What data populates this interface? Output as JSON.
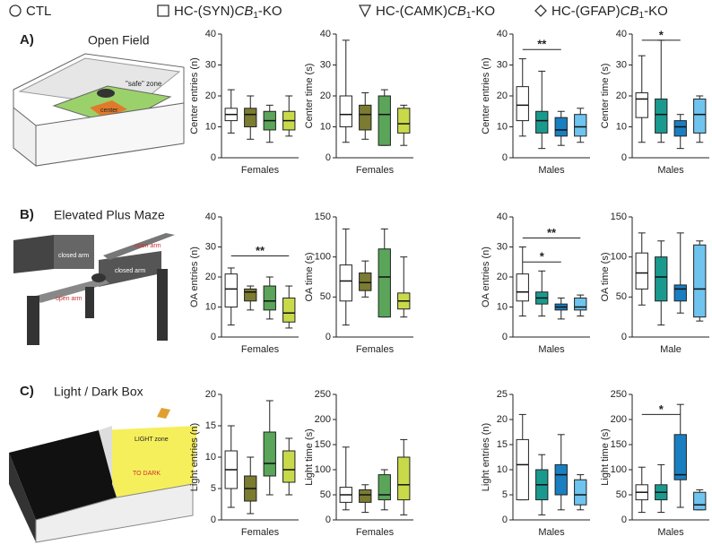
{
  "legend": [
    {
      "label": "CTL"
    },
    {
      "prefix": "HC-(SYN)",
      "gene": "CB",
      "sub": "1",
      "suffix": "-KO"
    },
    {
      "prefix": "HC-(CAMK)",
      "gene": "CB",
      "sub": "1",
      "suffix": "-KO"
    },
    {
      "prefix": "HC-(GFAP)",
      "gene": "CB",
      "sub": "1",
      "suffix": "-KO"
    }
  ],
  "rows": [
    {
      "label": "A)",
      "title": "Open Field",
      "notes": [
        "\"safe\" zone",
        "center"
      ]
    },
    {
      "label": "B)",
      "title": "Elevated Plus Maze",
      "notes": [
        "closed arm",
        "closed arm",
        "open arm",
        "open arm"
      ]
    },
    {
      "label": "C)",
      "title": "Light / Dark Box",
      "notes": [
        "LIGHT zone",
        "TO DARK"
      ]
    }
  ],
  "chart_data": [
    {
      "type": "box",
      "ylabel": "Center entries (n)",
      "xlabel": "Females",
      "ylim": [
        0,
        40
      ],
      "yticks": [
        0,
        10,
        20,
        30,
        40
      ],
      "boxes": [
        {
          "color": "#ffffff",
          "values": [
            8,
            12,
            14,
            16,
            22
          ]
        },
        {
          "color": "#7b7b32",
          "values": [
            6,
            10,
            14,
            16,
            20
          ]
        },
        {
          "color": "#5aa55a",
          "values": [
            5,
            9,
            12,
            15,
            17
          ]
        },
        {
          "color": "#c8da4a",
          "values": [
            7,
            9,
            12,
            15,
            20
          ]
        }
      ]
    },
    {
      "type": "box",
      "ylabel": "Center time (s)",
      "xlabel": "Females",
      "ylim": [
        0,
        40
      ],
      "yticks": [
        0,
        10,
        20,
        30,
        40
      ],
      "boxes": [
        {
          "color": "#ffffff",
          "values": [
            5,
            10,
            14,
            20,
            38
          ]
        },
        {
          "color": "#7b7b32",
          "values": [
            6,
            9,
            14,
            17,
            21
          ]
        },
        {
          "color": "#5aa55a",
          "values": [
            4,
            4,
            14,
            20,
            22
          ]
        },
        {
          "color": "#c8da4a",
          "values": [
            4,
            8,
            11,
            16,
            17
          ]
        }
      ]
    },
    {
      "type": "box",
      "ylabel": "Center entries (n)",
      "xlabel": "Males",
      "ylim": [
        0,
        40
      ],
      "yticks": [
        0,
        10,
        20,
        30,
        40
      ],
      "boxes": [
        {
          "color": "#ffffff",
          "values": [
            7,
            12,
            17,
            23,
            32
          ]
        },
        {
          "color": "#1a9a8f",
          "values": [
            3,
            8,
            12,
            15,
            28
          ]
        },
        {
          "color": "#1a7fc0",
          "values": [
            4,
            7,
            9,
            13,
            15
          ]
        },
        {
          "color": "#6ec4ee",
          "values": [
            5,
            7,
            10,
            14,
            16
          ]
        }
      ],
      "annotations": [
        {
          "label": "**",
          "from": 0,
          "to": 2,
          "y": 35
        }
      ]
    },
    {
      "type": "box",
      "ylabel": "Center time (s)",
      "xlabel": "Males",
      "ylim": [
        0,
        40
      ],
      "yticks": [
        0,
        10,
        20,
        30,
        40
      ],
      "boxes": [
        {
          "color": "#ffffff",
          "values": [
            5,
            13,
            19,
            21,
            33
          ]
        },
        {
          "color": "#1a9a8f",
          "values": [
            5,
            8,
            14,
            19,
            38
          ]
        },
        {
          "color": "#1a7fc0",
          "values": [
            3,
            7,
            10,
            12,
            14
          ]
        },
        {
          "color": "#6ec4ee",
          "values": [
            5,
            8,
            14,
            19,
            20
          ]
        }
      ],
      "annotations": [
        {
          "label": "*",
          "from": 0,
          "to": 2,
          "y": 38
        }
      ]
    },
    {
      "type": "box",
      "ylabel": "OA entries (n)",
      "xlabel": "Females",
      "ylim": [
        0,
        40
      ],
      "yticks": [
        0,
        10,
        20,
        30,
        40
      ],
      "boxes": [
        {
          "color": "#ffffff",
          "values": [
            4,
            10,
            16,
            21,
            23
          ]
        },
        {
          "color": "#7b7b32",
          "values": [
            9,
            12,
            15,
            16,
            17
          ]
        },
        {
          "color": "#5aa55a",
          "values": [
            6,
            9,
            12,
            17,
            20
          ]
        },
        {
          "color": "#c8da4a",
          "values": [
            3,
            5,
            8,
            13,
            17
          ]
        }
      ],
      "annotations": [
        {
          "label": "**",
          "from": 0,
          "to": 3,
          "y": 27
        }
      ]
    },
    {
      "type": "box",
      "ylabel": "OA time (s)",
      "xlabel": "Females",
      "ylim": [
        0,
        150
      ],
      "yticks": [
        0,
        50,
        100,
        150
      ],
      "boxes": [
        {
          "color": "#ffffff",
          "values": [
            15,
            45,
            70,
            90,
            135
          ]
        },
        {
          "color": "#7b7b32",
          "values": [
            50,
            58,
            68,
            80,
            95
          ]
        },
        {
          "color": "#5aa55a",
          "values": [
            25,
            25,
            75,
            110,
            135
          ]
        },
        {
          "color": "#c8da4a",
          "values": [
            25,
            35,
            45,
            55,
            100
          ]
        }
      ]
    },
    {
      "type": "box",
      "ylabel": "OA entries (n)",
      "xlabel": "Males",
      "ylim": [
        0,
        40
      ],
      "yticks": [
        0,
        10,
        20,
        30,
        40
      ],
      "boxes": [
        {
          "color": "#ffffff",
          "values": [
            7,
            12,
            15,
            21,
            30
          ]
        },
        {
          "color": "#1a9a8f",
          "values": [
            7,
            11,
            13,
            15,
            22
          ]
        },
        {
          "color": "#1a7fc0",
          "values": [
            6,
            9,
            10,
            11,
            13
          ]
        },
        {
          "color": "#6ec4ee",
          "values": [
            7,
            9,
            10,
            13,
            14
          ]
        }
      ],
      "annotations": [
        {
          "label": "*",
          "from": 0,
          "to": 2,
          "y": 25
        },
        {
          "label": "**",
          "from": 0,
          "to": 3,
          "y": 33
        }
      ]
    },
    {
      "type": "box",
      "ylabel": "OA time (s)",
      "xlabel": "Male",
      "ylim": [
        0,
        150
      ],
      "yticks": [
        0,
        50,
        100,
        150
      ],
      "boxes": [
        {
          "color": "#ffffff",
          "values": [
            40,
            60,
            80,
            105,
            130
          ]
        },
        {
          "color": "#1a9a8f",
          "values": [
            15,
            45,
            75,
            100,
            120
          ]
        },
        {
          "color": "#1a7fc0",
          "values": [
            30,
            45,
            60,
            65,
            130
          ]
        },
        {
          "color": "#6ec4ee",
          "values": [
            20,
            25,
            60,
            115,
            120
          ]
        }
      ]
    },
    {
      "type": "box",
      "ylabel": "Light entries (n)",
      "xlabel": "Females",
      "ylim": [
        0,
        20
      ],
      "yticks": [
        0,
        5,
        10,
        15,
        20
      ],
      "boxes": [
        {
          "color": "#ffffff",
          "values": [
            2,
            5,
            8,
            11,
            15
          ]
        },
        {
          "color": "#7b7b32",
          "values": [
            1,
            3,
            5,
            7,
            10
          ]
        },
        {
          "color": "#5aa55a",
          "values": [
            4,
            7,
            9,
            14,
            19
          ]
        },
        {
          "color": "#c8da4a",
          "values": [
            4,
            6,
            8,
            11,
            13
          ]
        }
      ]
    },
    {
      "type": "box",
      "ylabel": "Light time (s)",
      "xlabel": "Females",
      "ylim": [
        0,
        250
      ],
      "yticks": [
        0,
        50,
        100,
        150,
        200,
        250
      ],
      "boxes": [
        {
          "color": "#ffffff",
          "values": [
            20,
            35,
            50,
            65,
            145
          ]
        },
        {
          "color": "#7b7b32",
          "values": [
            15,
            35,
            50,
            60,
            70
          ]
        },
        {
          "color": "#5aa55a",
          "values": [
            20,
            40,
            50,
            90,
            100
          ]
        },
        {
          "color": "#c8da4a",
          "values": [
            10,
            40,
            70,
            125,
            160
          ]
        }
      ]
    },
    {
      "type": "box",
      "ylabel": "Light entries (n)",
      "xlabel": "Males",
      "ylim": [
        0,
        25
      ],
      "yticks": [
        0,
        5,
        10,
        15,
        20,
        25
      ],
      "boxes": [
        {
          "color": "#ffffff",
          "values": [
            4,
            4,
            11,
            16,
            21
          ]
        },
        {
          "color": "#1a9a8f",
          "values": [
            1,
            4,
            7,
            10,
            13
          ]
        },
        {
          "color": "#1a7fc0",
          "values": [
            2,
            5,
            9,
            11,
            17
          ]
        },
        {
          "color": "#6ec4ee",
          "values": [
            2,
            3,
            5,
            8,
            9
          ]
        }
      ]
    },
    {
      "type": "box",
      "ylabel": "Light time (s)",
      "xlabel": "Males",
      "ylim": [
        0,
        250
      ],
      "yticks": [
        0,
        50,
        100,
        150,
        200,
        250
      ],
      "boxes": [
        {
          "color": "#ffffff",
          "values": [
            15,
            40,
            55,
            70,
            105
          ]
        },
        {
          "color": "#1a9a8f",
          "values": [
            15,
            40,
            55,
            70,
            110
          ]
        },
        {
          "color": "#1a7fc0",
          "values": [
            25,
            80,
            90,
            170,
            230
          ]
        },
        {
          "color": "#6ec4ee",
          "values": [
            20,
            20,
            30,
            55,
            60
          ]
        }
      ],
      "annotations": [
        {
          "label": "*",
          "from": 0,
          "to": 2,
          "y": 210
        }
      ]
    }
  ]
}
